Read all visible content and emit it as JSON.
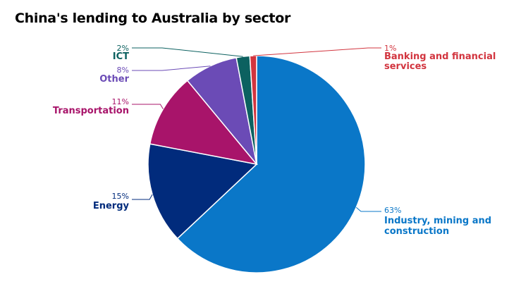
{
  "chart_data": {
    "type": "pie",
    "title": "China's lending to Australia by sector",
    "slices": [
      {
        "label_lines": [
          "Industry, mining and",
          "construction"
        ],
        "pct_label": "63%",
        "value": 63,
        "color": "#0a77c8"
      },
      {
        "label_lines": [
          "Energy"
        ],
        "pct_label": "15%",
        "value": 15,
        "color": "#012b7c"
      },
      {
        "label_lines": [
          "Transportation"
        ],
        "pct_label": "11%",
        "value": 11,
        "color": "#a8146a"
      },
      {
        "label_lines": [
          "Other"
        ],
        "pct_label": "8%",
        "value": 8,
        "color": "#6b4bb6"
      },
      {
        "label_lines": [
          "ICT"
        ],
        "pct_label": "2%",
        "value": 2,
        "color": "#0c6160"
      },
      {
        "label_lines": [
          "Banking and financial",
          "services"
        ],
        "pct_label": "1%",
        "value": 1,
        "color": "#d2353f"
      }
    ]
  }
}
